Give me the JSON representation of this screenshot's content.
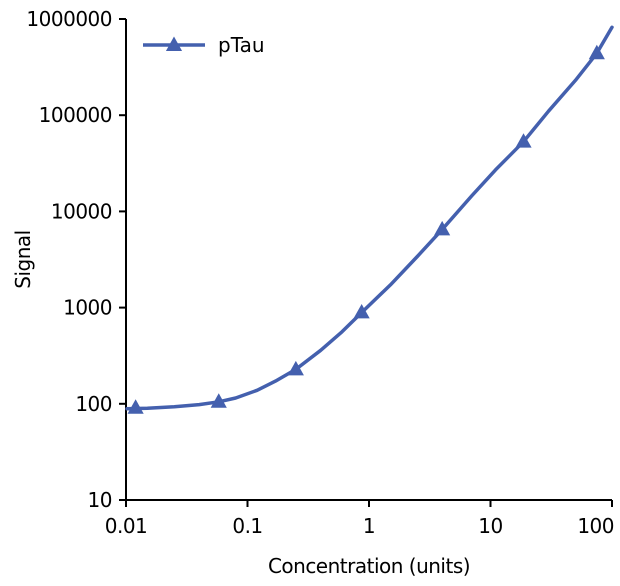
{
  "chart_data": {
    "type": "line",
    "xscale": "log",
    "yscale": "log",
    "xlim": [
      0.01,
      100
    ],
    "ylim": [
      10,
      1000000
    ],
    "xlabel": "Concentration (units)",
    "ylabel": "Signal",
    "xticks": [
      {
        "value": 0.01,
        "label": "0.01"
      },
      {
        "value": 0.1,
        "label": "0.1"
      },
      {
        "value": 1,
        "label": "1"
      },
      {
        "value": 10,
        "label": "10"
      },
      {
        "value": 100,
        "label": "100"
      }
    ],
    "yticks": [
      {
        "value": 10,
        "label": "10"
      },
      {
        "value": 100,
        "label": "100"
      },
      {
        "value": 1000,
        "label": "1000"
      },
      {
        "value": 10000,
        "label": "10000"
      },
      {
        "value": 100000,
        "label": "100000"
      },
      {
        "value": 1000000,
        "label": "1000000"
      }
    ],
    "grid": false,
    "legend_position": "top-left",
    "series": [
      {
        "name": "pTau",
        "color": "#4460ae",
        "marker": "triangle",
        "points": [
          {
            "x": 0.012,
            "y": 91
          },
          {
            "x": 0.058,
            "y": 105
          },
          {
            "x": 0.25,
            "y": 228
          },
          {
            "x": 0.87,
            "y": 890
          },
          {
            "x": 4.0,
            "y": 6500
          },
          {
            "x": 18.7,
            "y": 53000
          },
          {
            "x": 75,
            "y": 440000
          }
        ],
        "fit_curve": [
          {
            "x": 0.0095,
            "y": 89
          },
          {
            "x": 0.015,
            "y": 90
          },
          {
            "x": 0.025,
            "y": 93
          },
          {
            "x": 0.04,
            "y": 98
          },
          {
            "x": 0.058,
            "y": 105
          },
          {
            "x": 0.08,
            "y": 115
          },
          {
            "x": 0.12,
            "y": 138
          },
          {
            "x": 0.17,
            "y": 172
          },
          {
            "x": 0.25,
            "y": 228
          },
          {
            "x": 0.4,
            "y": 360
          },
          {
            "x": 0.6,
            "y": 560
          },
          {
            "x": 0.87,
            "y": 890
          },
          {
            "x": 1.5,
            "y": 1720
          },
          {
            "x": 2.5,
            "y": 3400
          },
          {
            "x": 4.0,
            "y": 6500
          },
          {
            "x": 7.0,
            "y": 14500
          },
          {
            "x": 11,
            "y": 27000
          },
          {
            "x": 18.7,
            "y": 53000
          },
          {
            "x": 30,
            "y": 110000
          },
          {
            "x": 50,
            "y": 230000
          },
          {
            "x": 75,
            "y": 440000
          },
          {
            "x": 110,
            "y": 820000
          }
        ]
      }
    ]
  }
}
